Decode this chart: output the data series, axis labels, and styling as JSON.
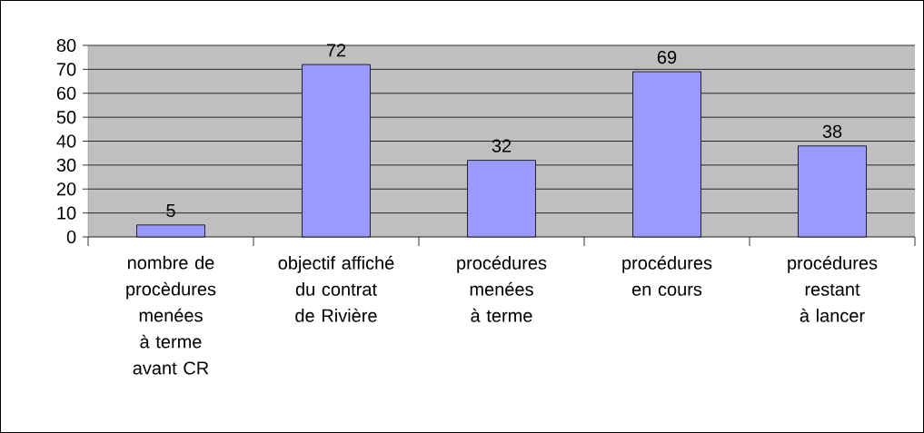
{
  "chart_data": {
    "type": "bar",
    "categories": [
      "nombre de procèdures menées à terme avant CR",
      "objectif affiché du contrat de Rivière",
      "procédures menées à terme",
      "procédures en cours",
      "procédures restant à lancer"
    ],
    "values": [
      5,
      72,
      32,
      69,
      38
    ],
    "color": "#9999ff",
    "data_labels": true,
    "ylim": [
      0,
      80
    ],
    "yticks": [
      0,
      10,
      20,
      30,
      40,
      50,
      60,
      70,
      80
    ],
    "grid": "y"
  }
}
